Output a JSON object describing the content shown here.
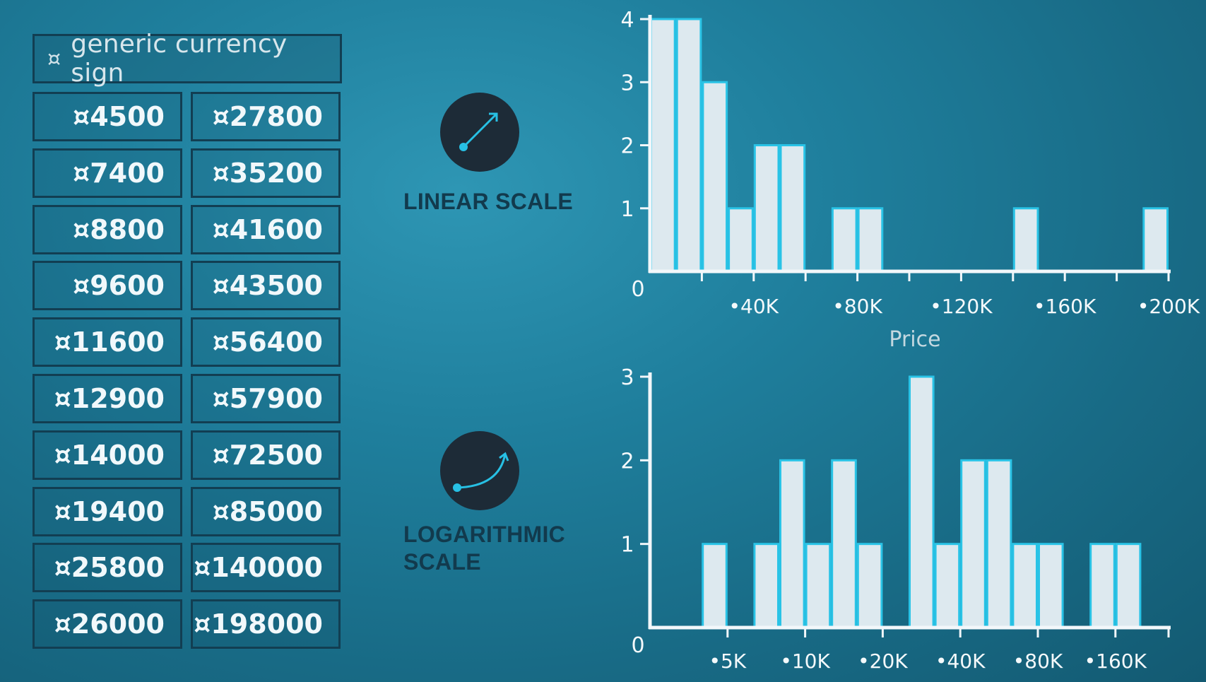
{
  "table": {
    "header_symbol": "¤",
    "header_label": "generic currency sign",
    "left_column": [
      "¤4500",
      "¤7400",
      "¤8800",
      "¤9600",
      "¤11600",
      "¤12900",
      "¤14000",
      "¤19400",
      "¤25800",
      "¤26000"
    ],
    "right_column": [
      "¤27800",
      "¤35200",
      "¤41600",
      "¤43500",
      "¤56400",
      "¤57900",
      "¤72500",
      "¤85000",
      "¤140000",
      "¤198000"
    ]
  },
  "labels": {
    "linear": "LINEAR SCALE",
    "log_line1": "LOGARITHMIC",
    "log_line2": "SCALE"
  },
  "icons": {
    "linear": "linear-arrow-icon",
    "log": "curved-arrow-icon"
  },
  "colors": {
    "bar_fill": "#dde9ef",
    "bar_stroke": "#29c3e6",
    "axis": "#f2f7fa",
    "tick_label": "#f4f9fb",
    "x_title": "#c4d8e0",
    "label_dark": "#123a4d"
  },
  "chart_data": [
    {
      "type": "bar",
      "scale": "linear",
      "title": "",
      "xlabel": "Price",
      "ylabel": "",
      "ylim": [
        0,
        4
      ],
      "yticks": [
        "0",
        "1",
        "2",
        "3",
        "4"
      ],
      "xlim": [
        0,
        200000
      ],
      "xticks": [
        {
          "value": 40000,
          "label": "•40K"
        },
        {
          "value": 80000,
          "label": "•80K"
        },
        {
          "value": 120000,
          "label": "•120K"
        },
        {
          "value": 160000,
          "label": "•160K"
        },
        {
          "value": 200000,
          "label": "•200K"
        }
      ],
      "bin_width": 10000,
      "bins": [
        {
          "start": 0,
          "count": 4
        },
        {
          "start": 10000,
          "count": 4
        },
        {
          "start": 20000,
          "count": 3
        },
        {
          "start": 30000,
          "count": 1
        },
        {
          "start": 40000,
          "count": 2
        },
        {
          "start": 50000,
          "count": 2
        },
        {
          "start": 70000,
          "count": 1
        },
        {
          "start": 80000,
          "count": 1
        },
        {
          "start": 140000,
          "count": 1
        },
        {
          "start": 190000,
          "count": 1
        }
      ]
    },
    {
      "type": "bar",
      "scale": "log",
      "title": "",
      "xlabel": "",
      "ylabel": "",
      "ylim": [
        0,
        3
      ],
      "yticks": [
        "0",
        "1",
        "2",
        "3"
      ],
      "xticks": [
        "•5K",
        "•10K",
        "•20K",
        "•40K",
        "•80K",
        "•160K"
      ],
      "bins_per_doubling": 3,
      "bins": [
        {
          "index": 2,
          "count": 1
        },
        {
          "index": 4,
          "count": 1
        },
        {
          "index": 5,
          "count": 2
        },
        {
          "index": 6,
          "count": 1
        },
        {
          "index": 7,
          "count": 2
        },
        {
          "index": 8,
          "count": 1
        },
        {
          "index": 10,
          "count": 3
        },
        {
          "index": 11,
          "count": 1
        },
        {
          "index": 12,
          "count": 2
        },
        {
          "index": 13,
          "count": 2
        },
        {
          "index": 14,
          "count": 1
        },
        {
          "index": 15,
          "count": 1
        },
        {
          "index": 17,
          "count": 1
        },
        {
          "index": 18,
          "count": 1
        }
      ]
    }
  ]
}
